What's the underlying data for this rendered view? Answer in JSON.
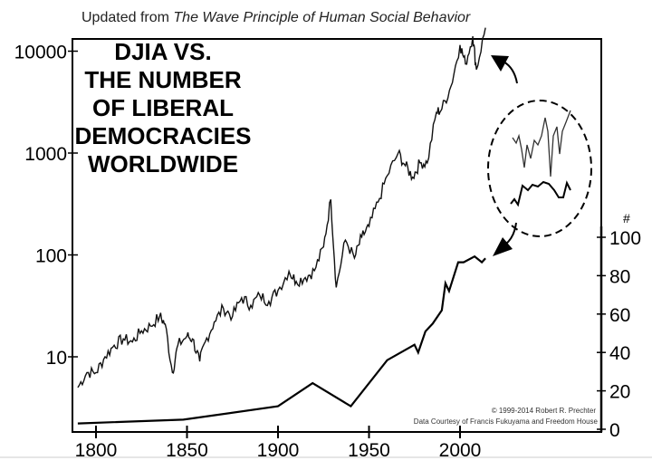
{
  "chart_data": {
    "type": "line",
    "subtitle_prefix": "Updated from ",
    "subtitle_book": "The Wave Principle of Human Social Behavior",
    "title_lines": [
      "DJIA VS.",
      "THE NUMBER",
      "OF LIBERAL",
      "DEMOCRACIES",
      "WORLDWIDE"
    ],
    "xlim": [
      1787,
      2025
    ],
    "x_ticks": [
      "1800",
      "1850",
      "1900",
      "1950",
      "2000"
    ],
    "y_left": {
      "scale": "log",
      "ylim": [
        2.5,
        20000
      ],
      "ticks": [
        "10",
        "100",
        "1000",
        "10000"
      ]
    },
    "y_right": {
      "label": "#",
      "ylim": [
        0,
        100
      ],
      "ticks": [
        "0",
        "20",
        "40",
        "60",
        "80",
        "100"
      ]
    },
    "copyright": "© 1999-2014 Robert R. Prechter",
    "source": "Data Courtesy of Francis Fukuyama and Freedom House",
    "series": [
      {
        "name": "DJIA",
        "axis": "left",
        "x": [
          1790,
          1795,
          1800,
          1805,
          1810,
          1815,
          1820,
          1825,
          1830,
          1835,
          1838,
          1842,
          1845,
          1850,
          1853,
          1857,
          1860,
          1865,
          1870,
          1875,
          1880,
          1885,
          1890,
          1895,
          1900,
          1906,
          1910,
          1915,
          1920,
          1925,
          1929,
          1932,
          1937,
          1942,
          1946,
          1950,
          1955,
          1960,
          1966,
          1970,
          1974,
          1978,
          1982,
          1987,
          1990,
          1995,
          2000,
          2003,
          2007,
          2009,
          2014
        ],
        "y": [
          5,
          7,
          7,
          10,
          13,
          15,
          14,
          18,
          20,
          25,
          21,
          7,
          13,
          16,
          15,
          9,
          14,
          22,
          30,
          25,
          38,
          32,
          40,
          35,
          45,
          69,
          55,
          60,
          70,
          120,
          350,
          48,
          140,
          93,
          150,
          190,
          330,
          600,
          1000,
          750,
          580,
          800,
          800,
          2500,
          2700,
          4500,
          11500,
          7500,
          14000,
          6600,
          17000
        ]
      },
      {
        "name": "Number of Liberal Democracies",
        "axis": "right",
        "x": [
          1790,
          1848,
          1900,
          1919,
          1940,
          1960,
          1975,
          1977,
          1981,
          1985,
          1990,
          1992,
          1994,
          1999,
          2002,
          2008,
          2012,
          2014
        ],
        "y": [
          3,
          5,
          12,
          24,
          12,
          36,
          44,
          40,
          51,
          55,
          62,
          76,
          72,
          87,
          87,
          90,
          87,
          89
        ]
      }
    ],
    "grid": false
  }
}
